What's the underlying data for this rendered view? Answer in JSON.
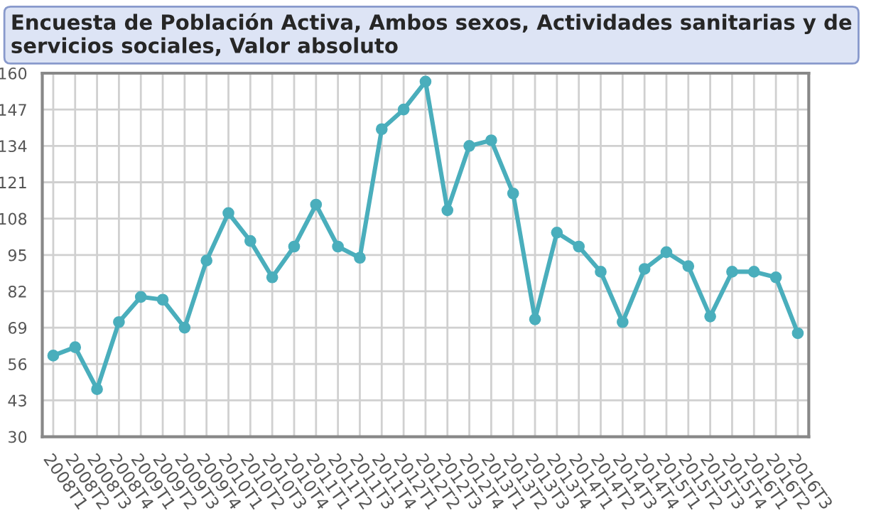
{
  "chart_data": {
    "type": "line",
    "title": "Encuesta de Población Activa, Ambos sexos, Actividades sanitarias y de servicios sociales, Valor absoluto",
    "categories": [
      "2008T1",
      "2008T2",
      "2008T3",
      "2008T4",
      "2009T1",
      "2009T2",
      "2009T3",
      "2009T4",
      "2010T1",
      "2010T2",
      "2010T3",
      "2010T4",
      "2011T1",
      "2011T2",
      "2011T3",
      "2011T4",
      "2012T1",
      "2012T2",
      "2012T3",
      "2012T4",
      "2013T1",
      "2013T2",
      "2013T3",
      "2013T4",
      "2014T1",
      "2014T2",
      "2014T3",
      "2014T4",
      "2015T1",
      "2015T2",
      "2015T3",
      "2015T4",
      "2016T1",
      "2016T2",
      "2016T3"
    ],
    "series": [
      {
        "color": "#4aaebc",
        "values": [
          59,
          62,
          47,
          71,
          80,
          79,
          69,
          93,
          110,
          100,
          87,
          98,
          113,
          98,
          94,
          140,
          147,
          157,
          111,
          134,
          136,
          117,
          72,
          103,
          98,
          89,
          71,
          90,
          96,
          91,
          73,
          89,
          89,
          87,
          67
        ]
      }
    ],
    "ylim": [
      30,
      160
    ],
    "yticks": [
      30,
      43,
      56,
      69,
      82,
      95,
      108,
      121,
      134,
      147,
      160
    ],
    "grid": true,
    "marker": "circle",
    "line_style": "solid",
    "legend": false
  }
}
